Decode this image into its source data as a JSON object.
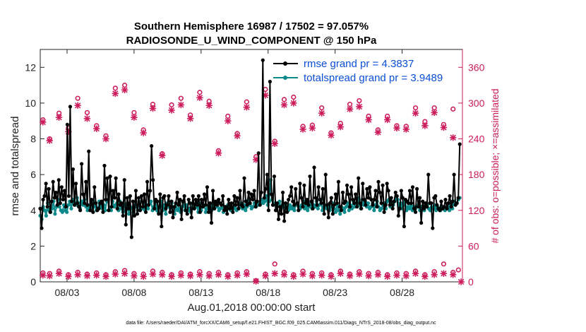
{
  "chart_data": {
    "type": "line",
    "title": "Southern Hemisphere 16987 / 17502 = 97.057%",
    "subtitle": "RADIOSONDE_U_WIND_COMPONENT @ 150 hPa",
    "xlabel": "Aug.01,2018 00:00:00 start",
    "ylabel": "rmse and totalspread",
    "ylabel_right": "# of obs: o=possible; ×=assimilated",
    "xlim": [
      1,
      32.5
    ],
    "ylim": [
      0,
      13
    ],
    "ylim_right": [
      0,
      390
    ],
    "xticks": [
      3,
      8,
      13,
      18,
      23,
      28
    ],
    "xtick_labels": [
      "08/03",
      "08/08",
      "08/13",
      "08/18",
      "08/23",
      "08/28"
    ],
    "yticks": [
      0,
      2,
      4,
      6,
      8,
      10,
      12
    ],
    "ytick_labels": [
      "0",
      "2",
      "4",
      "6",
      "8",
      "10",
      "12"
    ],
    "yticks_right": [
      0,
      60,
      120,
      180,
      240,
      300,
      360
    ],
    "ytick_right_labels": [
      "0",
      "60",
      "120",
      "180",
      "240",
      "300",
      "360"
    ],
    "legend_position": "top-right",
    "footnote": "data file: /Users/raeder/DAI/ATM_forcXX/CAM6_setup/f.e21.FHIST_BGC.f09_025.CAM6assim.011/Diags_NTrS_2018-08/obs_diag_output.nc",
    "series": [
      {
        "name": "rmse grand pr = 4.3837",
        "color": "#000000",
        "axis": "left",
        "values": [
          4.1,
          3.0,
          4.6,
          4.8,
          5.5,
          4.2,
          5.2,
          3.9,
          4.5,
          5.6,
          4.7,
          5.0,
          4.3,
          5.7,
          4.4,
          5.3,
          4.6,
          5.1,
          4.2,
          8.8,
          4.8,
          9.8,
          4.5,
          6.3,
          4.3,
          5.5,
          4.4,
          4.2,
          4.0,
          6.6,
          4.9,
          4.4,
          5.6,
          4.3,
          7.3,
          4.0,
          4.6,
          3.9,
          5.3,
          4.4,
          4.0,
          4.1,
          4.4,
          4.5,
          3.9,
          6.5,
          4.6,
          5.8,
          4.0,
          5.9,
          4.2,
          5.1,
          4.7,
          5.8,
          4.1,
          4.9,
          4.3,
          4.4,
          3.7,
          5.7,
          3.2,
          4.7,
          4.1,
          4.8,
          2.5,
          4.5,
          3.7,
          5.1,
          3.8,
          4.7,
          4.0,
          4.8,
          4.2,
          4.9,
          3.9,
          5.6,
          4.3,
          5.1,
          7.6,
          5.7,
          4.1,
          4.6,
          4.5,
          3.8,
          4.9,
          3.1,
          4.7,
          4.8,
          4.1,
          4.3,
          4.8,
          3.9,
          4.5,
          3.6,
          4.2,
          4.4,
          5.0,
          4.3,
          4.6,
          3.5,
          4.5,
          4.8,
          4.0,
          3.8,
          4.6,
          4.4,
          3.6,
          4.8,
          4.1,
          4.6,
          4.3,
          4.8,
          3.9,
          4.6,
          4.2,
          4.9,
          4.3,
          5.3,
          3.9,
          4.4,
          3.3,
          5.1,
          4.1,
          4.5,
          4.3,
          4.6,
          4.4,
          4.3,
          4.8,
          4.0,
          4.2,
          3.8,
          4.6,
          4.1,
          4.4,
          3.9,
          4.8,
          4.3,
          4.7,
          4.1,
          5.1,
          4.3,
          4.2,
          5.8,
          4.5,
          4.3,
          5.0,
          4.4,
          4.9,
          4.6,
          5.1,
          4.2,
          4.5,
          7.2,
          4.3,
          5.0,
          12.4,
          4.7,
          5.2,
          6.0,
          4.0,
          11.2,
          4.9,
          4.3,
          5.9,
          4.0,
          4.4,
          3.5,
          4.2,
          3.8,
          5.0,
          3.4,
          4.4,
          3.9,
          4.6,
          4.8,
          5.3,
          4.5,
          4.3,
          5.2,
          4.4,
          4.0,
          5.5,
          4.7,
          4.2,
          5.4,
          4.4,
          4.6,
          4.3,
          5.9,
          4.5,
          4.1,
          6.4,
          4.7,
          4.3,
          5.3,
          4.6,
          4.4,
          5.2,
          3.8,
          6.0,
          4.3,
          3.6,
          4.4,
          4.7,
          3.8,
          4.3,
          4.9,
          4.4,
          5.6,
          4.2,
          4.0,
          5.0,
          4.4,
          4.5,
          5.4,
          4.9,
          4.2,
          5.3,
          4.6,
          4.4,
          4.9,
          4.2,
          5.8,
          4.4,
          4.1,
          5.5,
          4.6,
          4.3,
          5.2,
          4.7,
          5.3,
          4.6,
          4.3,
          4.6,
          5.1,
          4.2,
          5.6,
          5.0,
          4.4,
          5.4,
          3.9,
          4.3,
          5.5,
          5.1,
          4.3,
          4.7,
          4.1,
          4.5,
          5.0,
          4.8,
          3.7,
          4.1,
          5.1,
          4.7,
          3.1,
          4.6,
          4.5,
          4.4,
          5.1,
          4.4,
          5.3,
          4.1,
          3.9,
          5.2,
          4.2,
          4.7,
          3.3,
          4.5,
          4.1,
          4.4,
          4.2,
          6.0,
          4.4,
          4.4,
          3.0,
          4.7,
          4.8,
          4.3,
          4.1,
          4.0,
          4.5,
          4.1,
          4.2,
          4.6,
          4.1,
          4.4,
          4.8,
          4.2,
          4.5,
          6.0,
          4.3,
          4.4,
          4.7,
          7.7
        ]
      },
      {
        "name": "totalspread grand pr = 3.9489",
        "color": "#0e8a8a",
        "axis": "left",
        "values": [
          3.7,
          3.5,
          4.2,
          4.0,
          3.7,
          4.4,
          4.0,
          3.9,
          4.1,
          4.5,
          3.8,
          4.2,
          4.6,
          4.2,
          4.0,
          3.9,
          4.3,
          4.0,
          3.9,
          4.3,
          4.5,
          4.1,
          4.6,
          4.4,
          4.3,
          4.7,
          4.4,
          4.1,
          4.5,
          4.3,
          4.6,
          4.2,
          4.0,
          4.3,
          4.1,
          4.4,
          4.5,
          4.2,
          4.0,
          4.1,
          4.5,
          4.2,
          4.1,
          4.3,
          4.0,
          4.5,
          4.6,
          4.1,
          4.0,
          4.5,
          4.2,
          4.3,
          4.4,
          4.0,
          4.5,
          4.1,
          3.9,
          4.3,
          4.0,
          4.4,
          3.8,
          4.2,
          4.1,
          3.9,
          4.3,
          4.2,
          4.0,
          4.5,
          4.1,
          4.1,
          4.4,
          4.0,
          4.3,
          4.1,
          4.4,
          4.5,
          4.0,
          4.2,
          4.6,
          4.0,
          3.9,
          4.2,
          4.5,
          4.0,
          4.3,
          3.8,
          4.4,
          4.2,
          3.9,
          4.4,
          4.1,
          3.8,
          4.3,
          4.0,
          4.1,
          3.9,
          4.2,
          4.4,
          4.0,
          4.3,
          4.0,
          4.1,
          3.9,
          4.4,
          4.1,
          4.3,
          4.2,
          3.9,
          4.4,
          4.0,
          4.2,
          4.3,
          3.9,
          4.1,
          4.2,
          4.4,
          4.0,
          4.3,
          4.1,
          4.3,
          4.2,
          4.0,
          4.1,
          4.3,
          3.9,
          4.2,
          4.0,
          4.3,
          4.1,
          4.0,
          4.2,
          4.1,
          4.3,
          4.0,
          4.1,
          4.2,
          4.4,
          4.1,
          4.3,
          4.0,
          4.2,
          4.6,
          4.3,
          4.1,
          4.2,
          4.4,
          4.2,
          4.5,
          4.3,
          4.4,
          4.6,
          4.4,
          4.5,
          4.8,
          4.3,
          4.5,
          5.7,
          4.6,
          4.3,
          4.4,
          4.0,
          4.3,
          4.5,
          4.1,
          4.3,
          4.2,
          4.4,
          4.2,
          4.0,
          4.3,
          4.1,
          4.2,
          4.0,
          4.3,
          4.4,
          4.2,
          4.1,
          4.3,
          4.5,
          4.1,
          4.3,
          4.0,
          4.2,
          4.4,
          4.1,
          4.3,
          4.2,
          4.5,
          4.1,
          4.3,
          4.6,
          4.0,
          4.4,
          4.2,
          4.1,
          4.3,
          4.0,
          4.2,
          4.4,
          4.1,
          3.9,
          4.3,
          4.0,
          3.8,
          4.2,
          4.1,
          3.9,
          4.2,
          4.4,
          4.0,
          4.3,
          4.1,
          4.5,
          4.2,
          4.4,
          4.7,
          4.3,
          4.1,
          4.6,
          4.3,
          4.5,
          4.2,
          4.4,
          4.1,
          4.2,
          4.4,
          4.0,
          4.3,
          4.5,
          4.2,
          4.0,
          4.1,
          4.3,
          4.4,
          4.1,
          4.5,
          4.6,
          4.2,
          4.4,
          4.3,
          4.5,
          4.7,
          4.6,
          4.2,
          4.4,
          4.1,
          4.3,
          4.5,
          4.0,
          4.2,
          4.1,
          4.3,
          4.0,
          4.2,
          4.1,
          4.2,
          4.3,
          4.0,
          4.2,
          4.1,
          4.0,
          4.2,
          4.3,
          4.1,
          4.0,
          4.2,
          4.1,
          4.3,
          4.0,
          4.2,
          4.1,
          4.0,
          4.2,
          4.1,
          4.0,
          4.1,
          4.2,
          4.0,
          4.3,
          4.1,
          4.5,
          4.3,
          4.4,
          4.6,
          4.7
        ]
      },
      {
        "name": "obs possible",
        "color": "#cc1c5c",
        "axis": "right",
        "marker": "o",
        "x": [
          1.2,
          1.7,
          2.4,
          3.1,
          3.8,
          4.5,
          5.2,
          5.9,
          6.6,
          7.3,
          8.0,
          8.7,
          9.4,
          10.1,
          10.8,
          11.5,
          12.2,
          12.9,
          13.6,
          14.3,
          15.0,
          15.7,
          16.4,
          17.1,
          17.8,
          18.5,
          19.2,
          19.9,
          20.6,
          21.3,
          22.0,
          22.7,
          23.4,
          24.1,
          24.8,
          25.5,
          26.2,
          26.9,
          27.6,
          28.3,
          29.0,
          29.7,
          30.4,
          31.1,
          31.8
        ],
        "y": [
          272,
          240,
          283,
          258,
          308,
          284,
          262,
          245,
          325,
          330,
          284,
          255,
          298,
          215,
          297,
          308,
          280,
          318,
          303,
          220,
          278,
          249,
          302,
          210,
          323,
          236,
          306,
          310,
          261,
          263,
          292,
          250,
          266,
          298,
          304,
          278,
          255,
          278,
          262,
          261,
          292,
          269,
          292,
          264,
          290
        ],
        "y2_label": "possible"
      },
      {
        "name": "obs assimilated",
        "color": "#cc1c5c",
        "axis": "right",
        "marker": "x",
        "x": [
          1.2,
          1.7,
          2.4,
          3.1,
          3.8,
          4.5,
          5.2,
          5.9,
          6.6,
          7.3,
          8.0,
          8.7,
          9.4,
          10.1,
          10.8,
          11.5,
          12.2,
          12.9,
          13.6,
          14.3,
          15.0,
          15.7,
          16.4,
          17.1,
          17.8,
          18.5,
          19.2,
          19.9,
          20.6,
          21.3,
          22.0,
          22.7,
          23.4,
          24.1,
          24.8,
          25.5,
          26.2,
          26.9,
          27.6,
          28.3,
          29.0,
          29.7,
          30.4,
          31.1,
          31.8
        ],
        "y": [
          268,
          237,
          276,
          252,
          296,
          274,
          257,
          240,
          316,
          322,
          276,
          250,
          291,
          212,
          288,
          297,
          274,
          309,
          296,
          216,
          270,
          245,
          293,
          205,
          313,
          232,
          297,
          300,
          256,
          258,
          283,
          246,
          260,
          290,
          294,
          272,
          251,
          272,
          258,
          256,
          283,
          262,
          284,
          259,
          242
        ]
      },
      {
        "name": "obs possible low",
        "color": "#cc1c5c",
        "axis": "right",
        "marker": "o",
        "x": [
          1.2,
          1.7,
          2.4,
          3.1,
          3.8,
          4.5,
          5.2,
          5.9,
          6.6,
          7.3,
          8.0,
          8.7,
          9.4,
          10.1,
          10.8,
          11.5,
          12.2,
          12.9,
          13.6,
          14.3,
          15.0,
          15.7,
          16.4,
          17.1,
          17.8,
          18.5,
          19.2,
          19.9,
          20.6,
          21.3,
          22.0,
          22.7,
          23.4,
          24.1,
          24.8,
          25.5,
          26.2,
          26.9,
          27.6,
          28.3,
          29.0,
          29.7,
          30.4,
          31.1,
          31.8,
          32.2
        ],
        "y": [
          15,
          14,
          18,
          12,
          16,
          13,
          15,
          12,
          17,
          19,
          14,
          13,
          18,
          16,
          12,
          15,
          13,
          17,
          14,
          16,
          12,
          15,
          17,
          2,
          13,
          30,
          16,
          12,
          18,
          14,
          15,
          12,
          18,
          13,
          17,
          14,
          16,
          12,
          15,
          14,
          18,
          12,
          17,
          30,
          16,
          20
        ]
      },
      {
        "name": "obs assimilated low",
        "color": "#cc1c5c",
        "axis": "right",
        "marker": "x",
        "x": [
          1.2,
          1.7,
          2.4,
          3.1,
          3.8,
          4.5,
          5.2,
          5.9,
          6.6,
          7.3,
          8.0,
          8.7,
          9.4,
          10.1,
          10.8,
          11.5,
          12.2,
          12.9,
          13.6,
          14.3,
          15.0,
          15.7,
          16.4,
          17.1,
          17.8,
          18.5,
          19.2,
          19.9,
          20.6,
          21.3,
          22.0,
          22.7,
          23.4,
          24.1,
          24.8,
          25.5,
          26.2,
          26.9,
          27.6,
          28.3,
          29.0,
          29.7,
          30.4,
          31.1,
          31.8,
          32.4
        ],
        "y": [
          11,
          10,
          14,
          9,
          12,
          10,
          11,
          9,
          13,
          14,
          10,
          9,
          13,
          12,
          9,
          11,
          10,
          12,
          10,
          12,
          9,
          11,
          13,
          1,
          10,
          14,
          12,
          9,
          13,
          10,
          11,
          9,
          14,
          10,
          13,
          10,
          12,
          9,
          11,
          10,
          14,
          9,
          12,
          14,
          12,
          0
        ]
      }
    ]
  }
}
